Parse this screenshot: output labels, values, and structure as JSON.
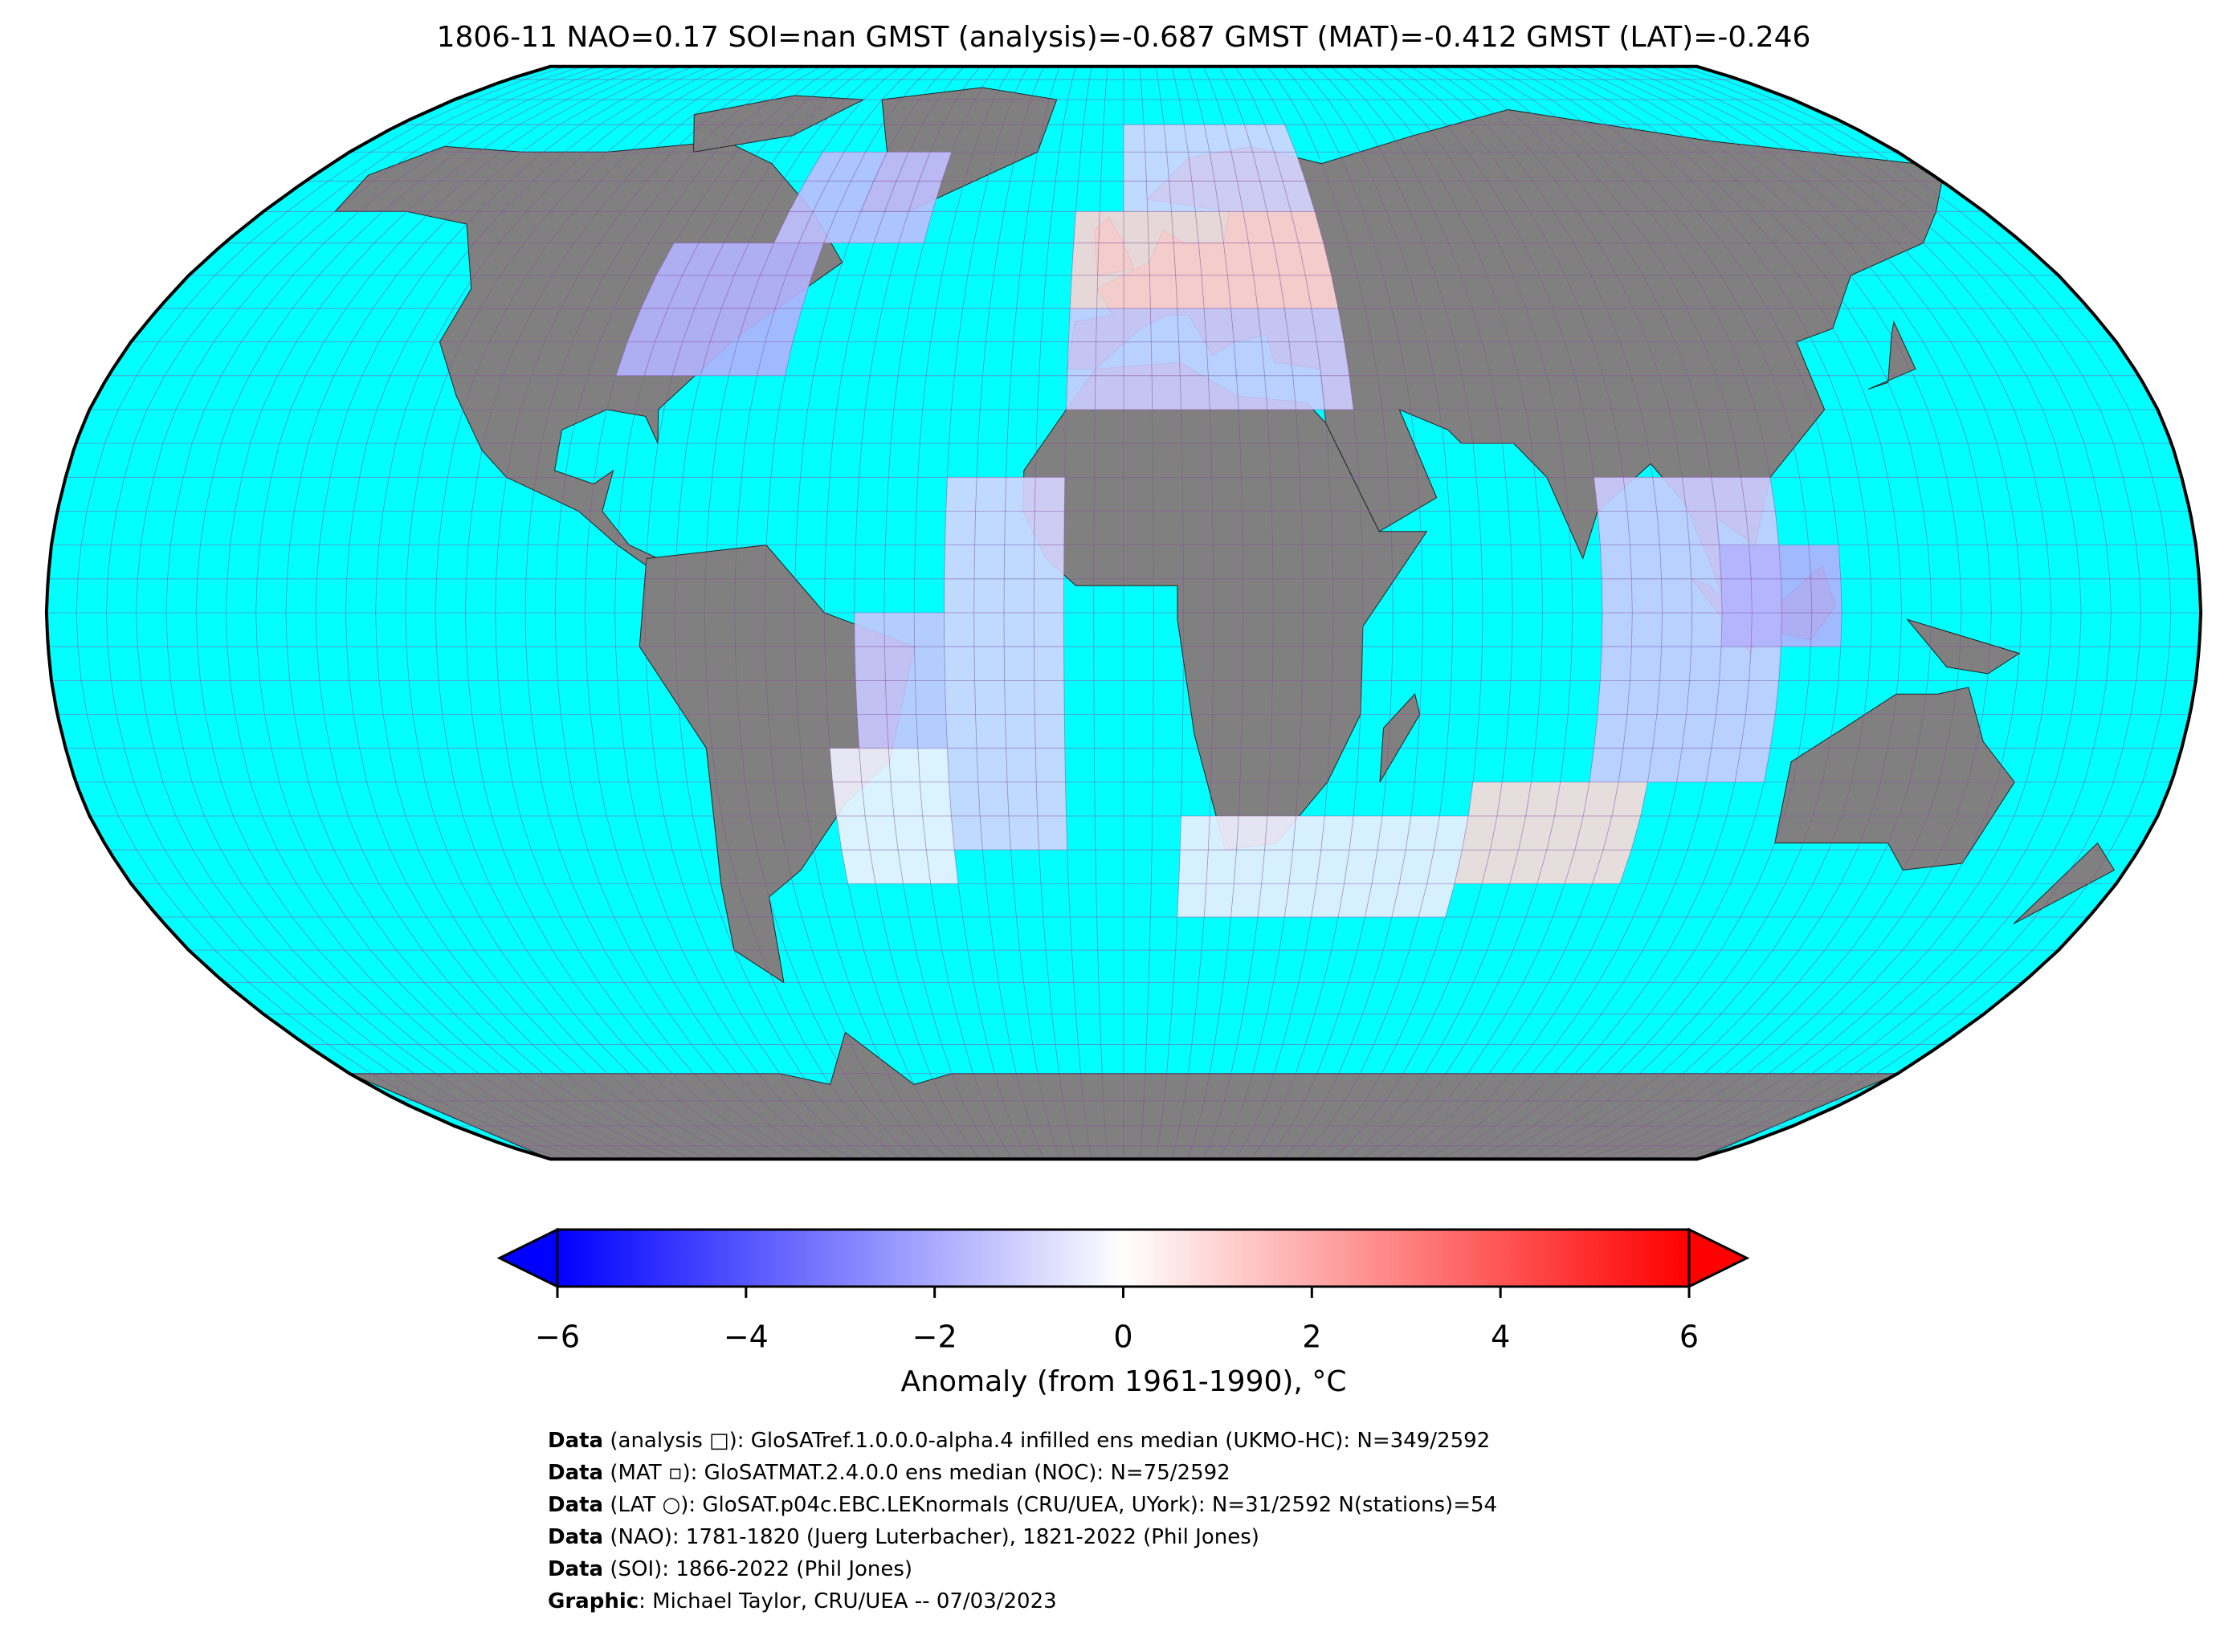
{
  "title": "1806-11 NAO=0.17 SOI=nan GMST (analysis)=-0.687 GMST (MAT)=-0.412 GMST (LAT)=-0.246",
  "map": {
    "projection": "robinson",
    "cells": [
      {
        "lon": [
          -90,
          -60
        ],
        "lat": [
          35,
          55
        ],
        "anomaly": -1.8
      },
      {
        "lon": [
          -70,
          -40
        ],
        "lat": [
          55,
          70
        ],
        "anomaly": -1.5
      },
      {
        "lon": [
          -10,
          40
        ],
        "lat": [
          45,
          60
        ],
        "anomaly": 1.0
      },
      {
        "lon": [
          0,
          40
        ],
        "lat": [
          60,
          72
        ],
        "anomaly": -1.0
      },
      {
        "lon": [
          -10,
          40
        ],
        "lat": [
          30,
          45
        ],
        "anomaly": -1.2
      },
      {
        "lon": [
          -30,
          -10
        ],
        "lat": [
          -35,
          20
        ],
        "anomaly": -1.0
      },
      {
        "lon": [
          -45,
          -30
        ],
        "lat": [
          -20,
          0
        ],
        "anomaly": -1.3
      },
      {
        "lon": [
          -50,
          -30
        ],
        "lat": [
          -40,
          -20
        ],
        "anomaly": -0.3
      },
      {
        "lon": [
          10,
          60
        ],
        "lat": [
          -45,
          -30
        ],
        "anomaly": -0.4
      },
      {
        "lon": [
          60,
          90
        ],
        "lat": [
          -40,
          -25
        ],
        "anomaly": 0.9
      },
      {
        "lon": [
          80,
          110
        ],
        "lat": [
          -25,
          20
        ],
        "anomaly": -1.2
      },
      {
        "lon": [
          100,
          120
        ],
        "lat": [
          -5,
          10
        ],
        "anomaly": -1.8
      }
    ]
  },
  "colorbar": {
    "range": [
      -6,
      6
    ],
    "ticks": [
      {
        "value": -6,
        "label": "−6"
      },
      {
        "value": -4,
        "label": "−4"
      },
      {
        "value": -2,
        "label": "−2"
      },
      0,
      2,
      4,
      6
    ],
    "label": "Anomaly (from 1961-1990), °C"
  },
  "footer": [
    {
      "label": "Data",
      "text": " (analysis □): GloSATref.1.0.0.0-alpha.4 infilled ens median (UKMO-HC): N=349/2592"
    },
    {
      "label": "Data",
      "text": " (MAT ▫): GloSATMAT.2.4.0.0 ens median (NOC): N=75/2592"
    },
    {
      "label": "Data",
      "text": " (LAT ○): GloSAT.p04c.EBC.LEKnormals (CRU/UEA, UYork): N=31/2592 N(stations)=54"
    },
    {
      "label": "Data",
      "text": " (NAO): 1781-1820 (Juerg Luterbacher), 1821-2022 (Phil Jones)"
    },
    {
      "label": "Data",
      "text": " (SOI): 1866-2022 (Phil Jones)"
    },
    {
      "label": "Graphic",
      "text": ": Michael Taylor, CRU/UEA -- 07/03/2023"
    }
  ]
}
